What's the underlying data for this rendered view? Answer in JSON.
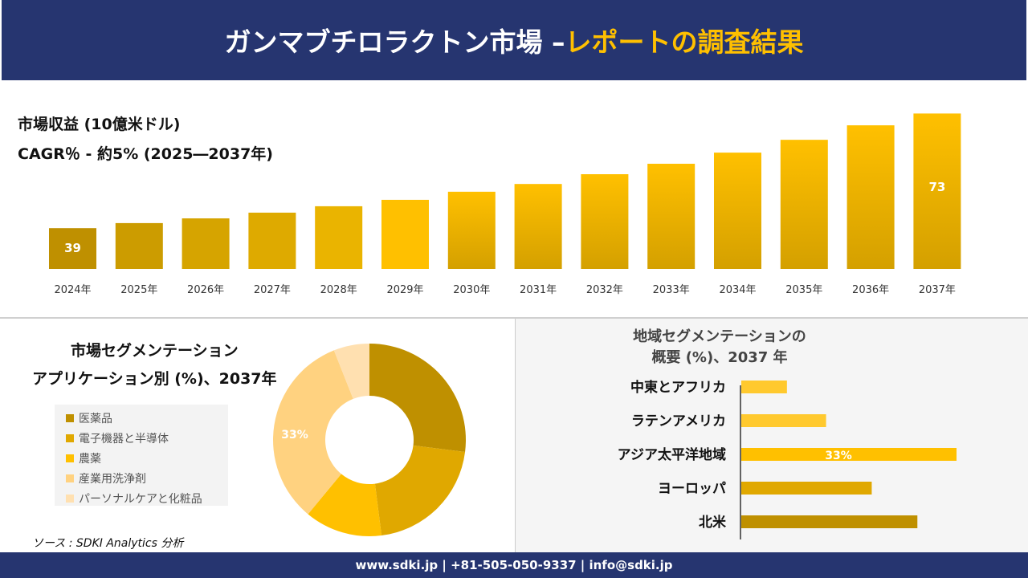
{
  "header": {
    "title_main": "ガンマブチロラクトン市場 –",
    "title_highlight": "レポートの調査結果"
  },
  "revenue": {
    "label": "市場収益 (10億米ドル)",
    "cagr": "CAGR％ - 約5% (2025―2037年)"
  },
  "application": {
    "title1": "市場セグメンテーション",
    "title2": "アプリケーション別 (%)、2037年"
  },
  "region": {
    "title1": "地域セグメンテーションの",
    "title2": "概要 (%)、2037 年"
  },
  "source": "ソース : SDKI Analytics 分析",
  "footer": "www.sdki.jp | +81-505-050-9337 | info@sdki.jp",
  "chart_data": [
    {
      "type": "bar",
      "categories": [
        "2024年",
        "2025年",
        "2026年",
        "2027年",
        "2028年",
        "2029年",
        "2030年",
        "2031年",
        "2032年",
        "2033年",
        "2034年",
        "2035年",
        "2036年",
        "2037年"
      ],
      "values": [
        39,
        40.5,
        41.9,
        43.6,
        45.5,
        47.4,
        49.8,
        52.1,
        55,
        58.1,
        61.4,
        65.2,
        69.5,
        73
      ],
      "data_labels": {
        "0": "39",
        "13": "73"
      }
    },
    {
      "type": "pie",
      "donut": true,
      "categories": [
        "医薬品",
        "電子機器と半導体",
        "農薬",
        "産業用洗浄剤",
        "パーソナルケアと化粧品"
      ],
      "values": [
        27,
        21,
        13,
        33,
        6
      ],
      "colors": [
        "#BF9000",
        "#E0A800",
        "#FFC000",
        "#FFD280",
        "#FFE0B0"
      ],
      "data_labels": {
        "3": "33%"
      }
    },
    {
      "type": "bar",
      "orientation": "horizontal",
      "categories": [
        "中東とアフリカ",
        "ラテンアメリカ",
        "アジア太平洋地域",
        "ヨーロッパ",
        "北米"
      ],
      "values": [
        7,
        13,
        33,
        20,
        27
      ],
      "colors": [
        "#FFC92E",
        "#FFC92E",
        "#FFC000",
        "#E0A800",
        "#BF9000"
      ],
      "data_labels": {
        "2": "33%"
      }
    }
  ]
}
